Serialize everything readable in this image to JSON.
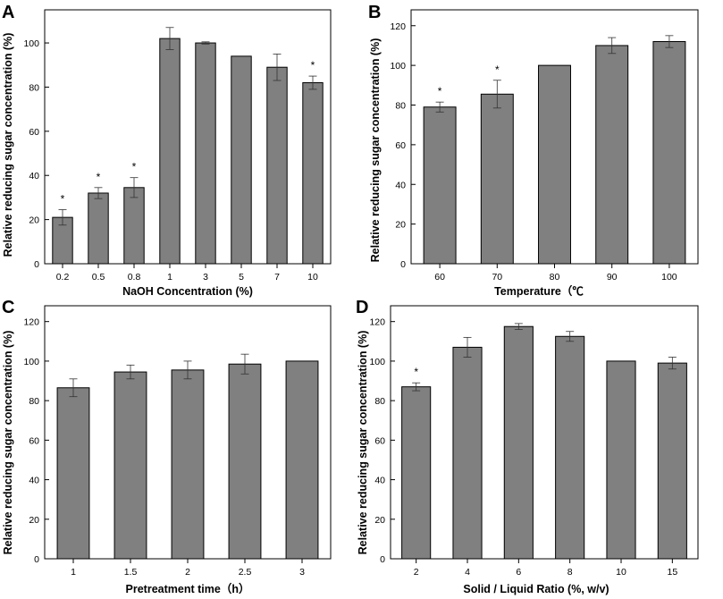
{
  "chart_data": [
    {
      "type": "bar",
      "panel": "A",
      "xlabel": "NaOH Concentration (%)",
      "ylabel": "Relative reducing sugar concentration (%)",
      "categories": [
        "0.2",
        "0.5",
        "0.8",
        "1",
        "3",
        "5",
        "7",
        "10"
      ],
      "values": [
        21,
        32,
        34.5,
        102,
        100,
        94,
        89,
        82
      ],
      "errors": [
        3.5,
        2.5,
        4.5,
        5,
        0.5,
        0,
        6,
        3
      ],
      "significant": [
        true,
        true,
        true,
        false,
        false,
        false,
        false,
        true
      ],
      "marker": "*",
      "ylim": [
        0,
        115
      ],
      "yticks": [
        0,
        20,
        40,
        60,
        80,
        100
      ]
    },
    {
      "type": "bar",
      "panel": "B",
      "xlabel": "Temperature（℃",
      "ylabel": "Relative reducing sugar concentration (%)",
      "categories": [
        "60",
        "70",
        "80",
        "90",
        "100"
      ],
      "values": [
        79,
        85.5,
        100,
        110,
        112
      ],
      "errors": [
        2.5,
        7,
        0,
        4,
        3
      ],
      "significant": [
        true,
        true,
        false,
        false,
        false
      ],
      "marker": "*",
      "ylim": [
        0,
        128
      ],
      "yticks": [
        0,
        20,
        40,
        60,
        80,
        100,
        120
      ]
    },
    {
      "type": "bar",
      "panel": "C",
      "xlabel": "Pretreatment time（h）",
      "ylabel": "Relative reducing sugar concentration (%)",
      "categories": [
        "1",
        "1.5",
        "2",
        "2.5",
        "3"
      ],
      "values": [
        86.5,
        94.5,
        95.5,
        98.5,
        100
      ],
      "errors": [
        4.5,
        3.5,
        4.5,
        5,
        0
      ],
      "significant": [
        false,
        false,
        false,
        false,
        false
      ],
      "marker": "*",
      "ylim": [
        0,
        128
      ],
      "yticks": [
        0,
        20,
        40,
        60,
        80,
        100,
        120
      ]
    },
    {
      "type": "bar",
      "panel": "D",
      "xlabel": "Solid / Liquid Ratio (%, w/v)",
      "ylabel": "Relative reducing sugar concentration (%)",
      "categories": [
        "2",
        "4",
        "6",
        "8",
        "10",
        "15"
      ],
      "values": [
        87,
        107,
        117.5,
        112.5,
        100,
        99
      ],
      "errors": [
        2,
        5,
        1.5,
        2.5,
        0,
        3
      ],
      "significant": [
        true,
        false,
        false,
        false,
        false,
        false
      ],
      "marker": "*",
      "ylim": [
        0,
        128
      ],
      "yticks": [
        0,
        20,
        40,
        60,
        80,
        100,
        120
      ]
    }
  ]
}
